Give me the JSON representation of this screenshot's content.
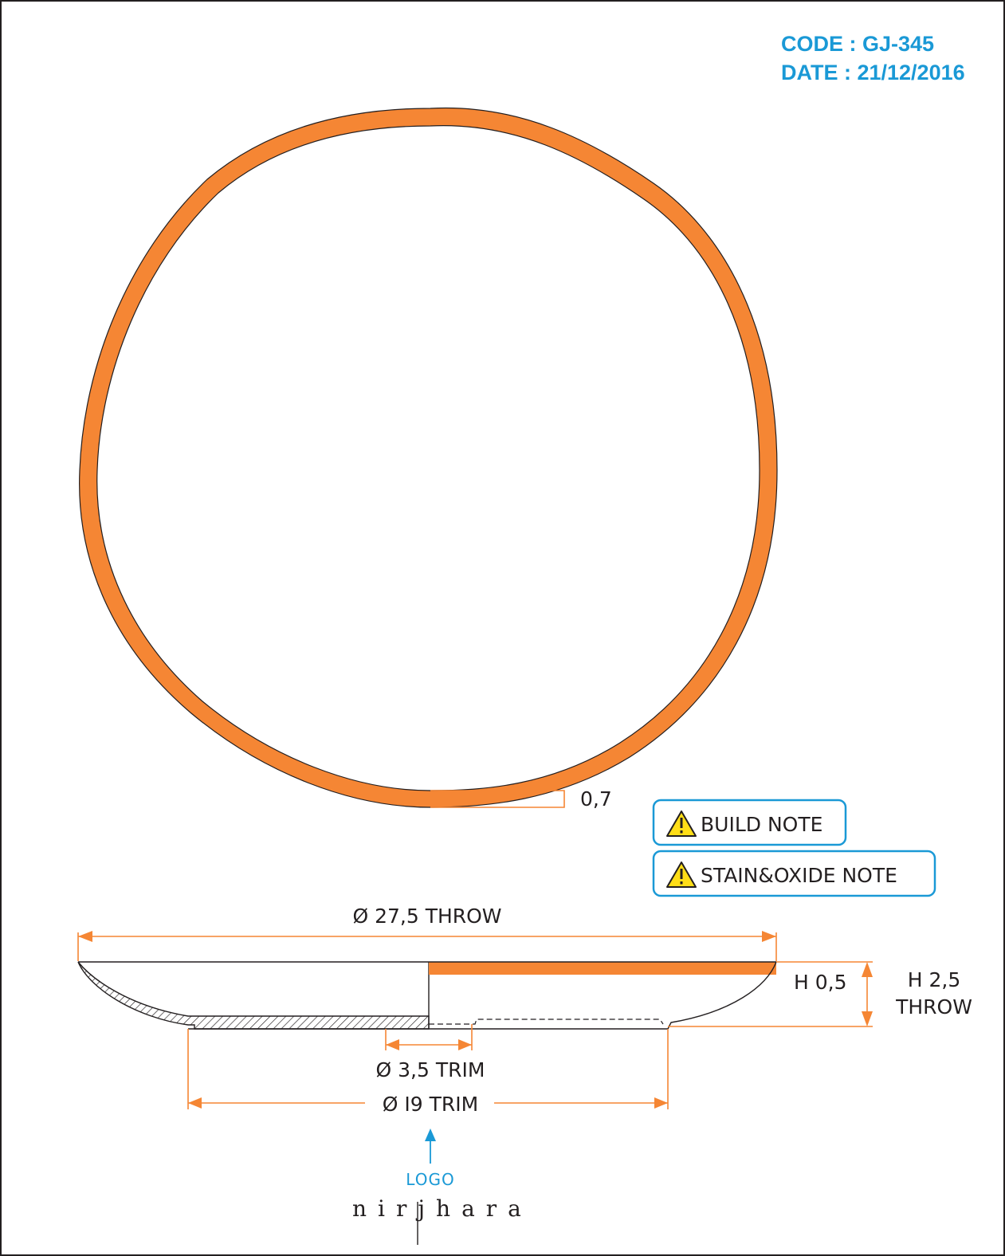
{
  "header": {
    "code": "CODE : GJ-345",
    "date": "DATE : 21/12/2016"
  },
  "top_view": {
    "rim_thickness_label": "0,7"
  },
  "notes": {
    "build": "BUILD NOTE",
    "stain_oxide": "STAIN&OXIDE NOTE",
    "icon": "warning-triangle-icon"
  },
  "section_view": {
    "outer_diameter_label": "Ø 27,5 THROW",
    "rim_height_label": "H 0,5",
    "total_height_label_line1": "H 2,5",
    "total_height_label_line2": "THROW",
    "inner_foot_label": "Ø 3,5 TRIM",
    "foot_diameter_label": "Ø I9 TRIM"
  },
  "logo": {
    "label": "LOGO",
    "brand_wordmark": "nirjhara"
  },
  "colors": {
    "accent_orange": "#f58634",
    "header_blue": "#1a99d6",
    "line_dark": "#231f20"
  }
}
